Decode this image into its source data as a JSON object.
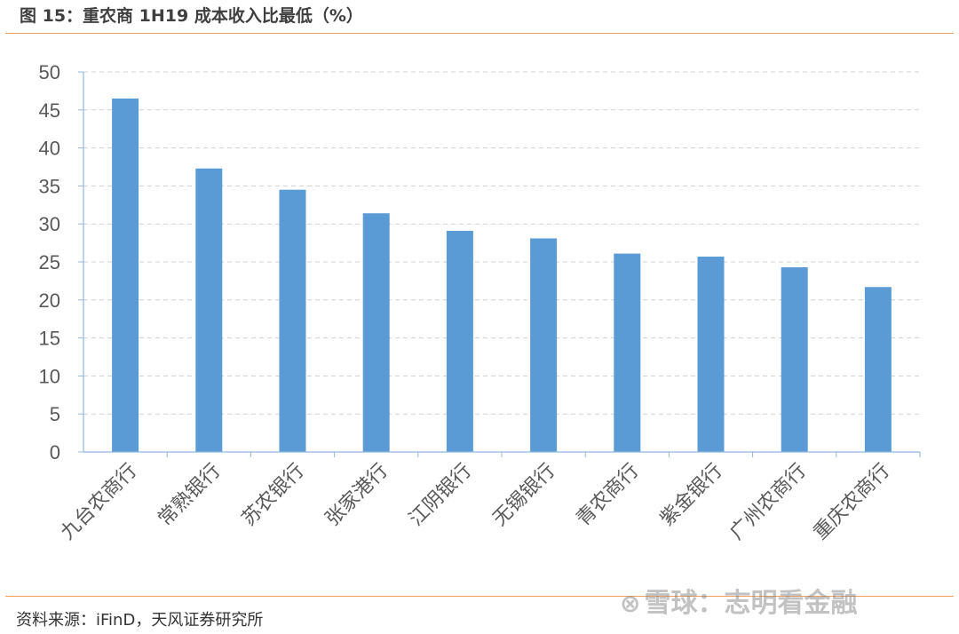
{
  "header": {
    "title": "图 15：重农商 1H19 成本收入比最低（%）"
  },
  "footer": {
    "source": "资料来源：iFinD，天风证券研究所"
  },
  "watermark": {
    "icon": "snowball-icon",
    "text": "雪球：志明看金融"
  },
  "colors": {
    "bar": "#5b9bd5",
    "grid": "#d0d0d0",
    "axis": "#8fb8de",
    "rule": "#f0a060",
    "tick_text": "#595959"
  },
  "chart_data": {
    "type": "bar",
    "categories": [
      "九台农商行",
      "常熟银行",
      "苏农银行",
      "张家港行",
      "江阴银行",
      "无锡银行",
      "青农商行",
      "紫金银行",
      "广州农商行",
      "重庆农商行"
    ],
    "values": [
      46.5,
      37.3,
      34.5,
      31.4,
      29.1,
      28.1,
      26.1,
      25.7,
      24.3,
      21.7
    ],
    "ylim": [
      0,
      50
    ],
    "yticks": [
      0,
      5,
      10,
      15,
      20,
      25,
      30,
      35,
      40,
      45,
      50
    ],
    "grid": true,
    "legend": "none"
  }
}
